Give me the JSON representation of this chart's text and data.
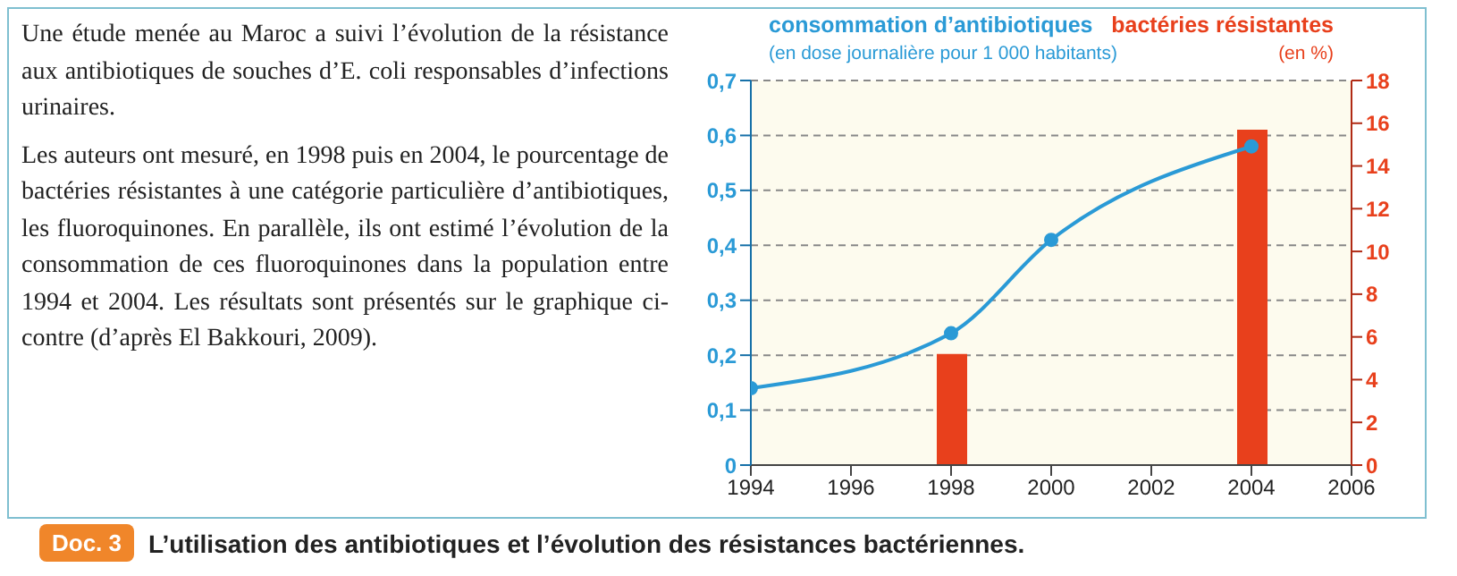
{
  "chart_data": {
    "type": "line",
    "title": "L’utilisation des antibiotiques et l’évolution des résistances bactériennes.",
    "annotations": [
      "Doc. 3",
      "Une étude menée au Maroc a suivi l’évolution de la résistance aux antibiotiques de souches d’E. coli responsables d’infections urinaires.",
      "Les auteurs ont mesuré, en 1998 puis en 2004, le pourcentage de bactéries résistantes à une catégorie particulière d’antibiotiques, les fluoroquinones. En parallèle, ils ont estimé l’évolution de la consommation de ces fluoroquinones dans la population entre 1994 et 2004. Les résultats sont présentés sur le graphique ci-contre (d’après El Bakkouri, 2009)."
    ],
    "ylabel": "consommation d’antibiotiques\n(en dose journalière pour 1 000 habitants)",
    "y2label": "bactéries résistantes\n(en %)",
    "xlim": [
      1994,
      2006
    ],
    "xticks": [
      1994,
      1996,
      1998,
      2000,
      2002,
      2004,
      2006
    ],
    "ylim": [
      0,
      0.7
    ],
    "yticks": [
      0,
      {
        "value": 0.1,
        "label": "0,1"
      },
      {
        "value": 0.2,
        "label": "0,2"
      },
      {
        "value": 0.3,
        "label": "0,3"
      },
      {
        "value": 0.4,
        "label": "0,4"
      },
      {
        "value": 0.5,
        "label": "0,5"
      },
      {
        "value": 0.6,
        "label": "0,6"
      },
      {
        "value": 0.7,
        "label": "0,7"
      }
    ],
    "y2lim": [
      0,
      18
    ],
    "y2ticks": [
      0,
      2,
      4,
      6,
      8,
      10,
      12,
      14,
      16,
      18
    ],
    "grid": "y",
    "marker": "circle",
    "legend": false,
    "series": [
      {
        "color": "#2a9ad6",
        "x": [
          1994,
          1998,
          2000,
          2004
        ],
        "values": [
          0.14,
          0.24,
          0.41,
          0.58
        ]
      },
      {
        "type": "bar",
        "axis": "y2",
        "color": "#e8401c",
        "x": [
          1998,
          2004
        ],
        "values": [
          5.2,
          15.7
        ]
      }
    ]
  }
}
